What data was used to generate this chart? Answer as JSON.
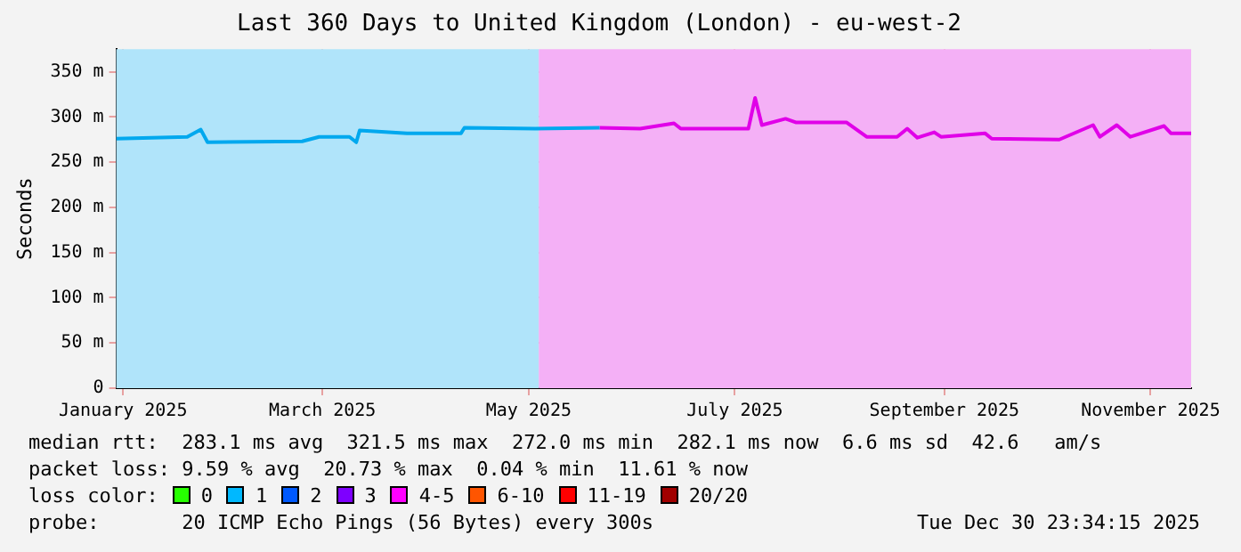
{
  "chart_data": {
    "type": "line",
    "title": "Last 360 Days to United Kingdom (London) - eu-west-2",
    "ylabel": "Seconds",
    "xlim": [
      "2024-12-30",
      "2025-11-13"
    ],
    "xticks": [
      {
        "value": "2025-01-01",
        "label": "January 2025"
      },
      {
        "value": "2025-03-01",
        "label": "March 2025"
      },
      {
        "value": "2025-05-01",
        "label": "May 2025"
      },
      {
        "value": "2025-07-01",
        "label": "July 2025"
      },
      {
        "value": "2025-09-01",
        "label": "September 2025"
      },
      {
        "value": "2025-11-01",
        "label": "November 2025"
      }
    ],
    "ylim": [
      0,
      375
    ],
    "yticks": [
      0,
      {
        "value": 50,
        "label": "50 m"
      },
      {
        "value": 100,
        "label": "100 m"
      },
      {
        "value": 150,
        "label": "150 m"
      },
      {
        "value": 200,
        "label": "200 m"
      },
      {
        "value": 250,
        "label": "250 m"
      },
      {
        "value": 300,
        "label": "300 m"
      },
      {
        "value": 350,
        "label": "350 m"
      }
    ],
    "grid": true,
    "legend": false,
    "marker": "none",
    "line_style": "solid",
    "series": [
      {
        "color": "#00a8ee",
        "x": [
          "2024-12-30",
          "2025-01-20",
          "2025-01-24",
          "2025-01-26",
          "2025-02-23",
          "2025-02-28",
          "2025-03-09",
          "2025-03-11",
          "2025-03-12",
          "2025-03-26",
          "2025-04-11",
          "2025-04-12",
          "2025-05-03",
          "2025-05-22"
        ],
        "values": [
          276,
          278,
          286,
          272,
          273,
          278,
          278,
          272,
          285,
          282,
          282,
          288,
          287,
          288
        ]
      },
      {
        "color": "#e000e8",
        "x": [
          "2025-05-22",
          "2025-06-03",
          "2025-06-13",
          "2025-06-15",
          "2025-07-05",
          "2025-07-07",
          "2025-07-09",
          "2025-07-16",
          "2025-07-19",
          "2025-08-03",
          "2025-08-09",
          "2025-08-18",
          "2025-08-21",
          "2025-08-24",
          "2025-08-29",
          "2025-08-31",
          "2025-09-13",
          "2025-09-15",
          "2025-10-05",
          "2025-10-15",
          "2025-10-17",
          "2025-10-22",
          "2025-10-26",
          "2025-11-05",
          "2025-11-07",
          "2025-11-13"
        ],
        "values": [
          288,
          287,
          293,
          287,
          287,
          321,
          291,
          298,
          294,
          294,
          278,
          278,
          287,
          277,
          283,
          278,
          282,
          276,
          275,
          291,
          278,
          291,
          278,
          290,
          282,
          282
        ]
      }
    ],
    "bands": [
      {
        "axis": "x",
        "from": "2024-12-30",
        "to": "2025-05-04",
        "color": "#b0e4fa"
      },
      {
        "axis": "x",
        "from": "2025-05-04",
        "to": "2025-11-13",
        "color": "#f4b0f6"
      }
    ],
    "annotations": [
      "median rtt:  283.1 ms avg  321.5 ms max  272.0 ms min  282.1 ms now  6.6 ms sd  42.6   am/s",
      "packet loss: 9.59 % avg  20.73 % max  0.04 % min  11.61 % now",
      "loss color:",
      "0",
      "1",
      "2",
      "3",
      "4-5",
      "6-10",
      "11-19",
      "20/20",
      "probe:       20 ICMP Echo Pings (56 Bytes) every 300s",
      "Tue Dec 30 23:34:15 2025"
    ]
  }
}
